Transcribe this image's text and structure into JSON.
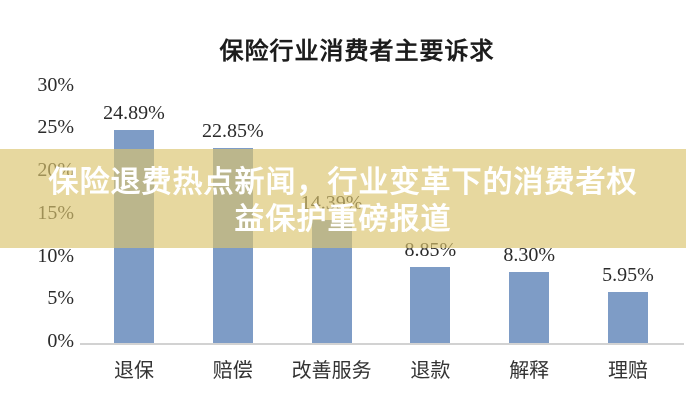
{
  "title": "保险行业消费者主要诉求",
  "overlay": {
    "line1": "保险退费热点新闻，行业变革下的消费者权",
    "line2": "益保护重磅报道",
    "bg_color": "rgba(219,196,110,0.66)",
    "text_color": "#ffffff"
  },
  "chart_data": {
    "type": "bar",
    "title": "保险行业消费者主要诉求",
    "categories": [
      "退保",
      "赔偿",
      "改善服务",
      "退款",
      "解释",
      "理赔"
    ],
    "values": [
      24.89,
      22.85,
      14.39,
      8.85,
      8.3,
      5.95
    ],
    "value_labels": [
      "24.89%",
      "22.85%",
      "14.39%",
      "8.85%",
      "8.30%",
      "5.95%"
    ],
    "xlabel": "",
    "ylabel": "",
    "ylim": [
      0,
      30
    ],
    "ytick_interval": 5,
    "ytick_labels": [
      "0%",
      "5%",
      "10%",
      "15%",
      "20%",
      "25%",
      "30%"
    ],
    "grid": false,
    "legend": "none",
    "bar_color": "#7e9cc6",
    "axis_color": "#d2d2d2",
    "label_color": "#2b2b2b"
  }
}
